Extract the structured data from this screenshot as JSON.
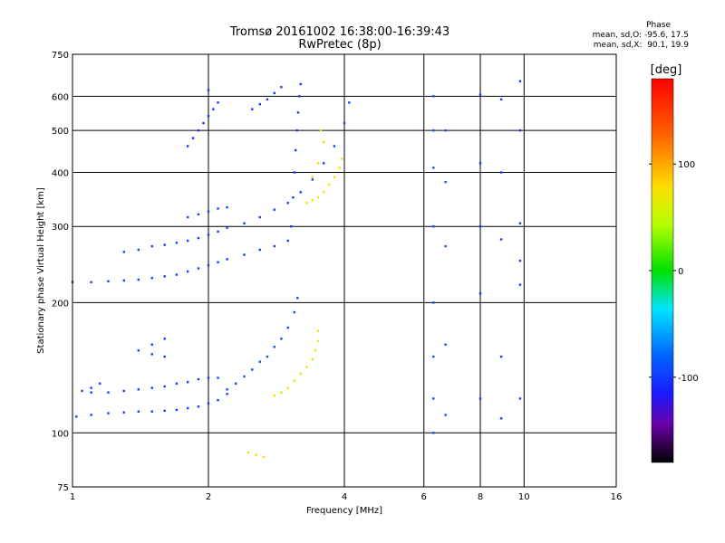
{
  "header": {
    "title": "Tromsø 20161002 16:38:00-16:39:43",
    "subtitle": "RwPretec (8p)",
    "phase_heading": "Phase",
    "phase_o": "mean, sd,O: -95.6, 17.5",
    "phase_x": "mean, sd,X:  90.1, 19.9"
  },
  "colorbar": {
    "unit": "[deg]",
    "ticks": [
      {
        "value": 100,
        "label": "100"
      },
      {
        "value": 0,
        "label": "0"
      },
      {
        "value": -100,
        "label": "-100"
      }
    ],
    "range": [
      -180,
      180
    ]
  },
  "chart_data": {
    "type": "scatter",
    "title": "Tromsø 20161002 16:38:00-16:39:43",
    "subtitle": "RwPretec (8p)",
    "xlabel": "Frequency [MHz]",
    "ylabel": "Stationary phase Virtual Height [km]",
    "x_scale": "log",
    "y_scale": "log",
    "xlim": [
      1,
      16
    ],
    "ylim": [
      75,
      750
    ],
    "x_ticks": [
      1,
      2,
      4,
      6,
      8,
      10,
      16
    ],
    "y_ticks": [
      75,
      100,
      200,
      300,
      400,
      500,
      600,
      750
    ],
    "grid": true,
    "color_variable": "phase [deg]",
    "traces": [
      {
        "name": "",
        "phase": -95,
        "points": [
          [
            1.02,
            109
          ],
          [
            1.1,
            110
          ],
          [
            1.2,
            111
          ],
          [
            1.3,
            111.5
          ],
          [
            1.4,
            112
          ],
          [
            1.5,
            112
          ],
          [
            1.6,
            112.5
          ],
          [
            1.7,
            113
          ],
          [
            1.8,
            114
          ],
          [
            1.9,
            115
          ],
          [
            2.0,
            117
          ],
          [
            2.1,
            119
          ],
          [
            2.2,
            123
          ]
        ]
      },
      {
        "name": "",
        "phase": -95,
        "points": [
          [
            1.1,
            124
          ],
          [
            1.2,
            124
          ],
          [
            1.3,
            125
          ],
          [
            1.4,
            126
          ],
          [
            1.5,
            127
          ],
          [
            1.6,
            128
          ],
          [
            1.7,
            130
          ],
          [
            1.8,
            131
          ],
          [
            1.9,
            133
          ],
          [
            2.0,
            134
          ],
          [
            2.1,
            134
          ]
        ]
      },
      {
        "name": "",
        "phase": -95,
        "points": [
          [
            1.05,
            125
          ],
          [
            1.1,
            127
          ],
          [
            1.15,
            130
          ],
          [
            1.4,
            155
          ],
          [
            1.5,
            152
          ],
          [
            1.6,
            150
          ],
          [
            1.5,
            160
          ],
          [
            1.6,
            165
          ]
        ]
      },
      {
        "name": "",
        "phase": -90,
        "points": [
          [
            2.2,
            126
          ],
          [
            2.3,
            130
          ],
          [
            2.4,
            135
          ],
          [
            2.5,
            140
          ],
          [
            2.6,
            146
          ],
          [
            2.7,
            150
          ],
          [
            2.8,
            158
          ],
          [
            2.9,
            165
          ],
          [
            3.0,
            175
          ],
          [
            3.1,
            190
          ],
          [
            3.15,
            205
          ]
        ]
      },
      {
        "name": "",
        "phase": 95,
        "points": [
          [
            2.8,
            122
          ],
          [
            2.9,
            124
          ],
          [
            3.0,
            127
          ],
          [
            3.1,
            132
          ],
          [
            3.2,
            137
          ],
          [
            3.3,
            142
          ],
          [
            3.4,
            148
          ],
          [
            3.45,
            155
          ],
          [
            3.5,
            163
          ],
          [
            3.5,
            172
          ]
        ]
      },
      {
        "name": "",
        "phase": 100,
        "points": [
          [
            2.45,
            90
          ],
          [
            2.55,
            89
          ],
          [
            2.65,
            88
          ]
        ]
      },
      {
        "name": "",
        "phase": -95,
        "points": [
          [
            1.0,
            223
          ],
          [
            1.1,
            223
          ],
          [
            1.2,
            224
          ],
          [
            1.3,
            225
          ],
          [
            1.4,
            226
          ],
          [
            1.5,
            228
          ],
          [
            1.6,
            230
          ],
          [
            1.7,
            232
          ],
          [
            1.8,
            236
          ],
          [
            1.9,
            240
          ],
          [
            2.0,
            244
          ],
          [
            2.1,
            248
          ],
          [
            2.2,
            252
          ],
          [
            2.4,
            258
          ],
          [
            2.6,
            265
          ],
          [
            2.8,
            270
          ],
          [
            3.0,
            278
          ]
        ]
      },
      {
        "name": "",
        "phase": -95,
        "points": [
          [
            1.3,
            262
          ],
          [
            1.4,
            265
          ],
          [
            1.5,
            270
          ],
          [
            1.6,
            272
          ],
          [
            1.7,
            275
          ],
          [
            1.8,
            278
          ],
          [
            1.9,
            282
          ],
          [
            2.0,
            287
          ],
          [
            2.1,
            292
          ],
          [
            2.2,
            298
          ],
          [
            2.4,
            305
          ],
          [
            2.6,
            315
          ],
          [
            2.8,
            328
          ],
          [
            3.0,
            340
          ],
          [
            3.2,
            360
          ],
          [
            3.4,
            385
          ],
          [
            3.6,
            420
          ],
          [
            3.8,
            460
          ],
          [
            4.0,
            520
          ],
          [
            4.1,
            580
          ]
        ]
      },
      {
        "name": "",
        "phase": -90,
        "points": [
          [
            1.8,
            315
          ],
          [
            1.9,
            320
          ],
          [
            2.0,
            325
          ],
          [
            2.1,
            330
          ],
          [
            2.2,
            332
          ]
        ]
      },
      {
        "name": "",
        "phase": -100,
        "points": [
          [
            2.5,
            560
          ],
          [
            2.6,
            575
          ],
          [
            2.7,
            590
          ],
          [
            2.8,
            610
          ],
          [
            2.9,
            630
          ]
        ]
      },
      {
        "name": "",
        "phase": -100,
        "points": [
          [
            3.05,
            300
          ],
          [
            3.08,
            350
          ],
          [
            3.1,
            400
          ],
          [
            3.12,
            450
          ],
          [
            3.14,
            500
          ],
          [
            3.16,
            550
          ],
          [
            3.18,
            600
          ],
          [
            3.2,
            640
          ]
        ]
      },
      {
        "name": "",
        "phase": -100,
        "points": [
          [
            1.8,
            460
          ],
          [
            1.85,
            480
          ],
          [
            1.9,
            500
          ],
          [
            1.95,
            520
          ],
          [
            2.0,
            540
          ],
          [
            2.05,
            560
          ],
          [
            2.1,
            580
          ],
          [
            2.0,
            620
          ]
        ]
      },
      {
        "name": "",
        "phase": 100,
        "points": [
          [
            3.3,
            340
          ],
          [
            3.4,
            345
          ],
          [
            3.5,
            350
          ],
          [
            3.6,
            360
          ],
          [
            3.7,
            375
          ],
          [
            3.8,
            390
          ],
          [
            3.9,
            410
          ],
          [
            3.95,
            430
          ],
          [
            3.5,
            420
          ],
          [
            3.6,
            470
          ],
          [
            3.4,
            390
          ],
          [
            3.55,
            500
          ]
        ]
      },
      {
        "name": "",
        "phase": -90,
        "points": [
          [
            6.3,
            600
          ],
          [
            6.3,
            500
          ],
          [
            6.3,
            410
          ],
          [
            6.3,
            300
          ],
          [
            6.3,
            200
          ],
          [
            6.3,
            150
          ],
          [
            6.3,
            120
          ],
          [
            6.3,
            100
          ],
          [
            6.7,
            500
          ],
          [
            6.7,
            380
          ],
          [
            6.7,
            270
          ],
          [
            6.7,
            160
          ],
          [
            6.7,
            110
          ]
        ]
      },
      {
        "name": "",
        "phase": -100,
        "points": [
          [
            8.0,
            605
          ],
          [
            8.0,
            420
          ],
          [
            8.0,
            300
          ],
          [
            8.0,
            210
          ],
          [
            8.0,
            120
          ],
          [
            8.9,
            590
          ],
          [
            8.9,
            400
          ],
          [
            8.9,
            280
          ],
          [
            8.9,
            150
          ],
          [
            8.9,
            108
          ],
          [
            9.8,
            650
          ],
          [
            9.8,
            500
          ],
          [
            9.8,
            305
          ],
          [
            9.8,
            250
          ],
          [
            9.8,
            220
          ],
          [
            9.8,
            120
          ]
        ]
      }
    ]
  }
}
